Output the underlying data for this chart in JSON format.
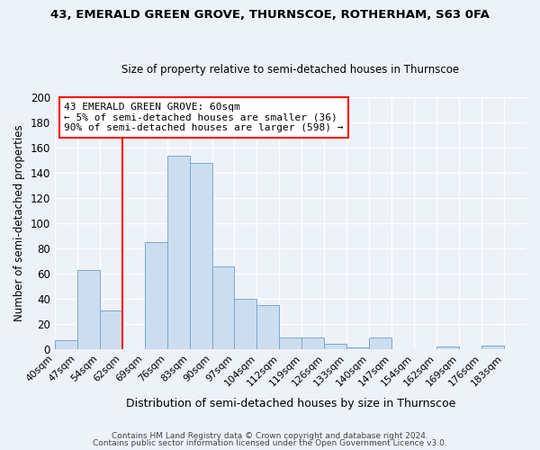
{
  "title1": "43, EMERALD GREEN GROVE, THURNSCOE, ROTHERHAM, S63 0FA",
  "title2": "Size of property relative to semi-detached houses in Thurnscoe",
  "xlabel": "Distribution of semi-detached houses by size in Thurnscoe",
  "ylabel": "Number of semi-detached properties",
  "bin_labels": [
    "40sqm",
    "47sqm",
    "54sqm",
    "62sqm",
    "69sqm",
    "76sqm",
    "83sqm",
    "90sqm",
    "97sqm",
    "104sqm",
    "112sqm",
    "119sqm",
    "126sqm",
    "133sqm",
    "140sqm",
    "147sqm",
    "154sqm",
    "162sqm",
    "169sqm",
    "176sqm",
    "183sqm"
  ],
  "bin_edges": [
    0,
    1,
    2,
    3,
    4,
    5,
    6,
    7,
    8,
    9,
    10,
    11,
    12,
    13,
    14,
    15,
    16,
    17,
    18,
    19,
    20,
    21
  ],
  "bar_heights": [
    7,
    63,
    31,
    0,
    85,
    154,
    148,
    66,
    40,
    35,
    9,
    9,
    4,
    1,
    9,
    0,
    0,
    2,
    0,
    3,
    0
  ],
  "bar_color": "#ccddf0",
  "bar_edge_color": "#7aa8cc",
  "vline_x": 3,
  "vline_color": "red",
  "annotation_title": "43 EMERALD GREEN GROVE: 60sqm",
  "annotation_line1": "← 5% of semi-detached houses are smaller (36)",
  "annotation_line2": "90% of semi-detached houses are larger (598) →",
  "ylim": [
    0,
    200
  ],
  "yticks": [
    0,
    20,
    40,
    60,
    80,
    100,
    120,
    140,
    160,
    180,
    200
  ],
  "footer1": "Contains HM Land Registry data © Crown copyright and database right 2024.",
  "footer2": "Contains public sector information licensed under the Open Government Licence v3.0.",
  "bg_color": "#edf2f9",
  "grid_color": "#ffffff"
}
